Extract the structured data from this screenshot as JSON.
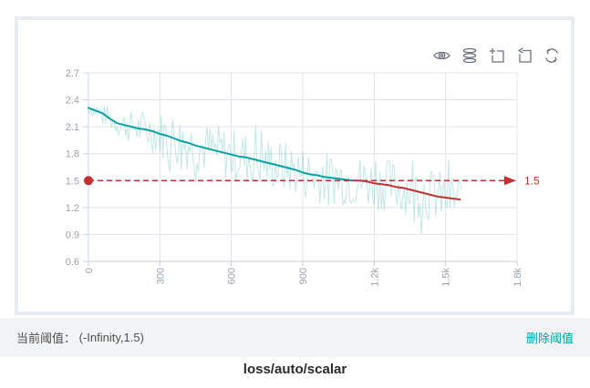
{
  "toolbar": {
    "icons": [
      "eye-icon",
      "stack-icon",
      "zoom-select-icon",
      "restore-icon",
      "refresh-icon"
    ]
  },
  "chart_data": {
    "type": "line",
    "title": "loss/auto/scalar",
    "xlabel": "",
    "ylabel": "",
    "xlim": [
      0,
      1800
    ],
    "ylim": [
      0.6,
      2.7
    ],
    "grid": true,
    "legend": "none",
    "x_ticks": [
      "0",
      "300",
      "600",
      "900",
      "1.2k",
      "1.5k",
      "1.8k"
    ],
    "x_tick_values": [
      0,
      300,
      600,
      900,
      1200,
      1500,
      1800
    ],
    "y_ticks": [
      "0.6",
      "0.9",
      "1.2",
      "1.5",
      "1.8",
      "2.1",
      "2.4",
      "2.7"
    ],
    "y_tick_values": [
      0.6,
      0.9,
      1.2,
      1.5,
      1.8,
      2.1,
      2.4,
      2.7
    ],
    "colors": {
      "grid": "#e1e4ea",
      "y_axis": "#ccd6ee",
      "x_axis": "#c8ccd4",
      "axis_label": "#9aa2b3"
    },
    "threshold": {
      "value": 1.5,
      "label": "1.5",
      "color": "#c5302e",
      "style": "dashed-arrow-right",
      "start_dot": true
    },
    "series": [
      {
        "name": "smoothed-loss",
        "color_above": "#0aa3a3",
        "color_below": "#c5302e",
        "points": [
          [
            0,
            2.31
          ],
          [
            30,
            2.28
          ],
          [
            60,
            2.25
          ],
          [
            90,
            2.19
          ],
          [
            120,
            2.14
          ],
          [
            150,
            2.12
          ],
          [
            180,
            2.1
          ],
          [
            210,
            2.08
          ],
          [
            240,
            2.07
          ],
          [
            270,
            2.05
          ],
          [
            300,
            2.02
          ],
          [
            330,
            2.0
          ],
          [
            360,
            1.97
          ],
          [
            390,
            1.94
          ],
          [
            420,
            1.92
          ],
          [
            450,
            1.89
          ],
          [
            480,
            1.87
          ],
          [
            510,
            1.85
          ],
          [
            540,
            1.83
          ],
          [
            570,
            1.81
          ],
          [
            600,
            1.79
          ],
          [
            630,
            1.77
          ],
          [
            660,
            1.76
          ],
          [
            690,
            1.74
          ],
          [
            720,
            1.72
          ],
          [
            750,
            1.7
          ],
          [
            780,
            1.68
          ],
          [
            810,
            1.66
          ],
          [
            840,
            1.64
          ],
          [
            870,
            1.62
          ],
          [
            900,
            1.59
          ],
          [
            930,
            1.57
          ],
          [
            960,
            1.56
          ],
          [
            990,
            1.54
          ],
          [
            1020,
            1.53
          ],
          [
            1050,
            1.52
          ],
          [
            1080,
            1.51
          ],
          [
            1110,
            1.5
          ],
          [
            1140,
            1.5
          ],
          [
            1170,
            1.49
          ],
          [
            1200,
            1.47
          ],
          [
            1230,
            1.46
          ],
          [
            1260,
            1.45
          ],
          [
            1290,
            1.43
          ],
          [
            1320,
            1.42
          ],
          [
            1350,
            1.4
          ],
          [
            1380,
            1.38
          ],
          [
            1410,
            1.36
          ],
          [
            1440,
            1.34
          ],
          [
            1470,
            1.32
          ],
          [
            1500,
            1.31
          ],
          [
            1530,
            1.3
          ],
          [
            1560,
            1.29
          ]
        ]
      },
      {
        "name": "raw-loss",
        "color": "#0aa3a3",
        "opacity": 0.25,
        "derived": "smoothed-plus-noise",
        "seed": 7,
        "step_interval": 6,
        "end_step": 1566,
        "amp_base": 0.07,
        "amp_max": 0.3,
        "amp_ramp_steps": 350
      }
    ]
  },
  "footer": {
    "threshold_label": "当前阈值：",
    "threshold_value": "(-Infinity,1.5)",
    "delete_link": "删除阈值"
  },
  "title": {
    "text": "loss/auto/scalar"
  }
}
